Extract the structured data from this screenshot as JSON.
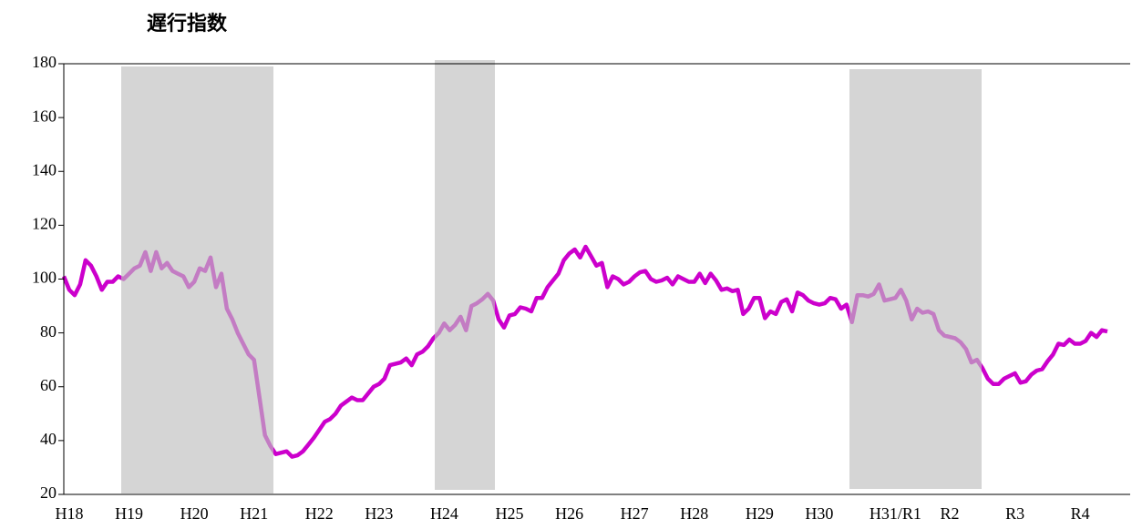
{
  "chart_data": {
    "type": "line",
    "title": "遅行指数",
    "categories": [
      null,
      "H18",
      null,
      null,
      null,
      null,
      null,
      null,
      null,
      null,
      null,
      null,
      "H19",
      null,
      null,
      null,
      null,
      null,
      null,
      null,
      null,
      null,
      null,
      null,
      "H20",
      null,
      null,
      null,
      null,
      null,
      null,
      null,
      null,
      null,
      null,
      "H21",
      null,
      null,
      null,
      null,
      null,
      null,
      null,
      null,
      null,
      null,
      null,
      "H22",
      null,
      null,
      null,
      null,
      null,
      null,
      null,
      null,
      null,
      null,
      "H23",
      null,
      null,
      null,
      null,
      null,
      null,
      null,
      null,
      null,
      null,
      null,
      "H24",
      null,
      null,
      null,
      null,
      null,
      null,
      null,
      null,
      null,
      null,
      null,
      "H25",
      null,
      null,
      null,
      null,
      null,
      null,
      null,
      null,
      null,
      null,
      "H26",
      null,
      null,
      null,
      null,
      null,
      null,
      null,
      null,
      null,
      null,
      null,
      "H27",
      null,
      null,
      null,
      null,
      null,
      null,
      null,
      null,
      null,
      null,
      "H28",
      null,
      null,
      null,
      null,
      null,
      null,
      null,
      null,
      null,
      null,
      null,
      "H29",
      null,
      null,
      null,
      null,
      null,
      null,
      null,
      null,
      null,
      null,
      "H30",
      null,
      null,
      null,
      null,
      null,
      null,
      null,
      null,
      null,
      null,
      null,
      null,
      null,
      "H31/R1",
      null,
      null,
      null,
      null,
      null,
      null,
      null,
      null,
      null,
      "R2",
      null,
      null,
      null,
      null,
      null,
      null,
      null,
      null,
      null,
      null,
      null,
      "R3",
      null,
      null,
      null,
      null,
      null,
      null,
      null,
      null,
      null,
      null,
      null,
      "R4",
      null,
      null,
      null,
      null,
      null
    ],
    "series": [
      {
        "color": "#cc00cc",
        "values": [
          101,
          96,
          94,
          98,
          107,
          105,
          101,
          96,
          99,
          99,
          101,
          100,
          102,
          104,
          105,
          110,
          103,
          110,
          104,
          106,
          103,
          102,
          101,
          97,
          99,
          104,
          103,
          108,
          97,
          102,
          89,
          85,
          80,
          76,
          72,
          70,
          56,
          42,
          38,
          35,
          35.5,
          36,
          34,
          34.5,
          36,
          38.5,
          41,
          44,
          47,
          48,
          50,
          53,
          54.5,
          56,
          55,
          55,
          57.5,
          60,
          61,
          63,
          68,
          68.5,
          69,
          70.5,
          68,
          72,
          73,
          75,
          78,
          80,
          83.5,
          81,
          83,
          86,
          81,
          90,
          91,
          92.5,
          94.5,
          92,
          85,
          82,
          86.5,
          87,
          89.5,
          89,
          88,
          93,
          93,
          97,
          99.5,
          102,
          107,
          109.5,
          111,
          108,
          112,
          108.5,
          105,
          106,
          97,
          101,
          100,
          98,
          99,
          101,
          102.5,
          103,
          100,
          99,
          99.5,
          100.5,
          98,
          101,
          100,
          99,
          99,
          102,
          98.5,
          102,
          99.5,
          96,
          96.5,
          95.5,
          96,
          87,
          89,
          93,
          93,
          85.5,
          88,
          87,
          91.5,
          92.5,
          88,
          95,
          94,
          92,
          91,
          90.5,
          91,
          93,
          92.5,
          89,
          90.5,
          84,
          94,
          94,
          93.5,
          94.5,
          98,
          92,
          92.5,
          93,
          96,
          92,
          85,
          89,
          87.5,
          88,
          87,
          81,
          79,
          78.5,
          78,
          76.5,
          74,
          69,
          70,
          67,
          63,
          61,
          61,
          63,
          64,
          65,
          61.5,
          62,
          64.5,
          66,
          66.5,
          69.5,
          72,
          76,
          75.5,
          77.5,
          76,
          76,
          77,
          80,
          78.5,
          81,
          80.5
        ]
      }
    ],
    "ylim": [
      20,
      180
    ],
    "yticks": [
      20,
      40,
      60,
      80,
      100,
      120,
      140,
      160,
      180
    ],
    "grid": false
  }
}
